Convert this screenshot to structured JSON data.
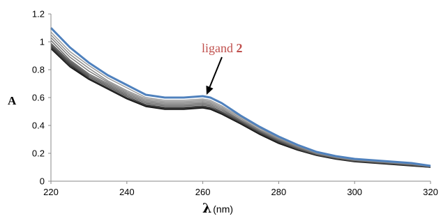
{
  "chart_data": {
    "type": "line",
    "title": "",
    "xlabel_symbol": "λ",
    "xlabel_unit": "(nm)",
    "ylabel": "A",
    "xlim": [
      220,
      320
    ],
    "ylim": [
      0,
      1.2
    ],
    "x_ticks": [
      "220",
      "240",
      "260",
      "280",
      "300",
      "320"
    ],
    "y_ticks": [
      "0",
      "0.2",
      "0.4",
      "0.6",
      "0.8",
      "1",
      "1.2"
    ],
    "grid": false,
    "legend": "none",
    "x": [
      220,
      225,
      230,
      235,
      240,
      245,
      250,
      255,
      260,
      262,
      265,
      270,
      275,
      280,
      285,
      290,
      295,
      300,
      305,
      310,
      315,
      320
    ],
    "series": [
      {
        "color": "#4f81bd",
        "values": [
          1.1,
          0.96,
          0.85,
          0.76,
          0.69,
          0.62,
          0.6,
          0.6,
          0.61,
          0.6,
          0.56,
          0.47,
          0.39,
          0.32,
          0.26,
          0.21,
          0.18,
          0.16,
          0.15,
          0.14,
          0.13,
          0.11
        ]
      },
      {
        "color": "#9a9a9a",
        "values": [
          1.07,
          0.93,
          0.83,
          0.74,
          0.67,
          0.6,
          0.58,
          0.58,
          0.59,
          0.58,
          0.54,
          0.46,
          0.38,
          0.31,
          0.255,
          0.205,
          0.175,
          0.155,
          0.145,
          0.135,
          0.125,
          0.108
        ]
      },
      {
        "color": "#8a8a8a",
        "values": [
          1.05,
          0.91,
          0.81,
          0.72,
          0.65,
          0.59,
          0.57,
          0.57,
          0.58,
          0.57,
          0.53,
          0.45,
          0.37,
          0.305,
          0.25,
          0.2,
          0.172,
          0.153,
          0.143,
          0.133,
          0.123,
          0.106
        ]
      },
      {
        "color": "#7a7a7a",
        "values": [
          1.03,
          0.89,
          0.79,
          0.71,
          0.64,
          0.58,
          0.56,
          0.56,
          0.57,
          0.56,
          0.52,
          0.44,
          0.365,
          0.3,
          0.245,
          0.198,
          0.17,
          0.151,
          0.141,
          0.131,
          0.121,
          0.105
        ]
      },
      {
        "color": "#6a6a6a",
        "values": [
          1.01,
          0.87,
          0.77,
          0.7,
          0.63,
          0.57,
          0.55,
          0.55,
          0.56,
          0.55,
          0.51,
          0.435,
          0.36,
          0.295,
          0.24,
          0.195,
          0.168,
          0.149,
          0.139,
          0.129,
          0.119,
          0.104
        ]
      },
      {
        "color": "#5a5a5a",
        "values": [
          0.99,
          0.86,
          0.76,
          0.69,
          0.62,
          0.56,
          0.54,
          0.54,
          0.55,
          0.54,
          0.5,
          0.43,
          0.355,
          0.29,
          0.235,
          0.192,
          0.166,
          0.147,
          0.137,
          0.127,
          0.117,
          0.103
        ]
      },
      {
        "color": "#4a4a4a",
        "values": [
          0.98,
          0.85,
          0.75,
          0.68,
          0.61,
          0.55,
          0.53,
          0.53,
          0.54,
          0.53,
          0.495,
          0.425,
          0.35,
          0.285,
          0.232,
          0.19,
          0.164,
          0.145,
          0.135,
          0.125,
          0.115,
          0.102
        ]
      },
      {
        "color": "#383838",
        "values": [
          0.97,
          0.84,
          0.74,
          0.67,
          0.6,
          0.545,
          0.525,
          0.525,
          0.535,
          0.525,
          0.49,
          0.42,
          0.345,
          0.28,
          0.228,
          0.188,
          0.162,
          0.143,
          0.133,
          0.123,
          0.113,
          0.101
        ]
      },
      {
        "color": "#262626",
        "values": [
          0.96,
          0.83,
          0.735,
          0.665,
          0.595,
          0.54,
          0.52,
          0.52,
          0.53,
          0.52,
          0.485,
          0.415,
          0.34,
          0.275,
          0.225,
          0.186,
          0.16,
          0.141,
          0.131,
          0.121,
          0.111,
          0.1
        ]
      },
      {
        "color": "#101010",
        "values": [
          0.95,
          0.82,
          0.73,
          0.66,
          0.59,
          0.535,
          0.515,
          0.515,
          0.525,
          0.515,
          0.48,
          0.41,
          0.335,
          0.27,
          0.222,
          0.184,
          0.158,
          0.139,
          0.129,
          0.119,
          0.109,
          0.099
        ]
      }
    ],
    "annotation": {
      "text": "ligand ",
      "bold": "2",
      "target": [
        261,
        0.6
      ]
    }
  }
}
